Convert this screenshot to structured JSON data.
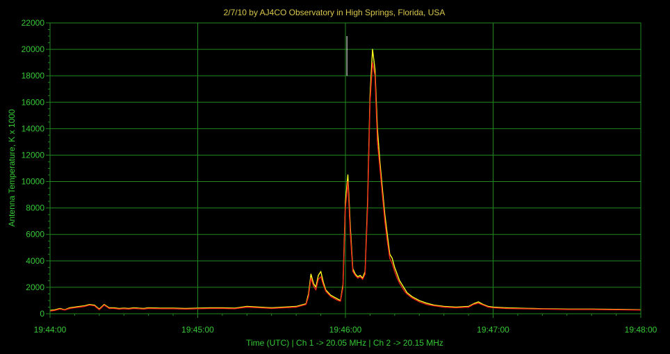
{
  "chart_data": {
    "type": "line",
    "title": "2/7/10  by  AJ4CO Observatory  in  High Springs, Florida, USA",
    "xlabel": "Time (UTC)  |  Ch 1 -> 20.05 MHz  |  Ch 2 -> 20.15 MHz",
    "ylabel": "Antenna Temperature, K x 1000",
    "x_tick_labels": [
      "19:44:00",
      "19:45:00",
      "19:46:00",
      "19:47:00",
      "19:48:00"
    ],
    "x_tick_seconds": [
      0,
      60,
      120,
      180,
      240
    ],
    "xlim_seconds": [
      0,
      240
    ],
    "y_tick_labels": [
      "0",
      "2000",
      "4000",
      "6000",
      "8000",
      "10000",
      "12000",
      "14000",
      "16000",
      "18000",
      "20000",
      "22000"
    ],
    "ylim": [
      0,
      22000
    ],
    "grid": true,
    "colors": {
      "background": "#000000",
      "grid": "#1f8a1f",
      "axis_text": "#35c935",
      "title": "#d8c74a",
      "ch1": "#e8211b",
      "ch2": "#ffff1e",
      "spike": "#ffffff"
    },
    "series": [
      {
        "name": "Ch 1 -> 20.05 MHz",
        "color": "#e8211b",
        "x_seconds": [
          0,
          2,
          4,
          6,
          8,
          10,
          12,
          14,
          16,
          18,
          20,
          22,
          24,
          26,
          28,
          30,
          32,
          34,
          36,
          38,
          40,
          45,
          50,
          55,
          60,
          65,
          70,
          75,
          80,
          85,
          90,
          95,
          100,
          102,
          104,
          105,
          106,
          107,
          108,
          109,
          110,
          111,
          112,
          113,
          114,
          115,
          116,
          117,
          118,
          119,
          120,
          121,
          122,
          123,
          124,
          125,
          126,
          127,
          128,
          129,
          130,
          131,
          132,
          133,
          134,
          135,
          136,
          137,
          138,
          139,
          140,
          141,
          142,
          143,
          144,
          145,
          147,
          150,
          153,
          156,
          160,
          165,
          170,
          172,
          174,
          176,
          178,
          180,
          185,
          190,
          200,
          210,
          220,
          230,
          240
        ],
        "values": [
          200,
          250,
          350,
          280,
          400,
          450,
          500,
          550,
          650,
          600,
          300,
          650,
          400,
          400,
          350,
          380,
          350,
          400,
          380,
          350,
          400,
          380,
          380,
          350,
          380,
          400,
          400,
          380,
          500,
          450,
          400,
          450,
          500,
          600,
          700,
          1300,
          2700,
          2100,
          1800,
          2600,
          2800,
          2200,
          1700,
          1500,
          1300,
          1200,
          1100,
          1000,
          950,
          2000,
          8000,
          10000,
          6000,
          3200,
          2900,
          2700,
          2800,
          2600,
          3000,
          8000,
          16000,
          19000,
          18000,
          13000,
          11000,
          9000,
          7000,
          5500,
          4200,
          3800,
          3200,
          2700,
          2300,
          2000,
          1700,
          1500,
          1200,
          900,
          700,
          600,
          500,
          450,
          500,
          700,
          800,
          650,
          500,
          450,
          400,
          380,
          350,
          320,
          320,
          300,
          280
        ]
      },
      {
        "name": "Ch 2 -> 20.15 MHz",
        "color": "#ffff1e",
        "x_seconds": [
          0,
          2,
          4,
          6,
          8,
          10,
          12,
          14,
          16,
          18,
          20,
          22,
          24,
          26,
          28,
          30,
          32,
          34,
          36,
          38,
          40,
          45,
          50,
          55,
          60,
          65,
          70,
          75,
          80,
          85,
          90,
          95,
          100,
          102,
          104,
          105,
          106,
          107,
          108,
          109,
          110,
          111,
          112,
          113,
          114,
          115,
          116,
          117,
          118,
          119,
          120,
          121,
          122,
          123,
          124,
          125,
          126,
          127,
          128,
          129,
          130,
          131,
          132,
          133,
          134,
          135,
          136,
          137,
          138,
          139,
          140,
          141,
          142,
          143,
          144,
          145,
          147,
          150,
          153,
          156,
          160,
          165,
          170,
          172,
          174,
          176,
          178,
          180,
          185,
          190,
          200,
          210,
          220,
          230,
          240
        ],
        "values": [
          250,
          300,
          400,
          300,
          450,
          500,
          550,
          600,
          700,
          650,
          350,
          700,
          450,
          450,
          400,
          420,
          400,
          450,
          420,
          400,
          450,
          420,
          420,
          400,
          420,
          450,
          450,
          420,
          550,
          500,
          450,
          500,
          550,
          650,
          750,
          1500,
          3000,
          2300,
          2000,
          2900,
          3200,
          2400,
          1800,
          1600,
          1400,
          1300,
          1200,
          1100,
          1000,
          2200,
          8500,
          10500,
          6500,
          3400,
          3000,
          2800,
          2900,
          2700,
          3200,
          8500,
          16500,
          20000,
          18500,
          14000,
          11500,
          9500,
          7500,
          6000,
          4500,
          4200,
          3500,
          3000,
          2500,
          2200,
          1900,
          1600,
          1300,
          1000,
          800,
          650,
          550,
          500,
          550,
          750,
          900,
          700,
          550,
          500,
          450,
          420,
          380,
          350,
          350,
          330,
          300
        ]
      }
    ],
    "spike": {
      "x_seconds": 120.6,
      "value": 21000,
      "color": "#ffffff"
    }
  }
}
